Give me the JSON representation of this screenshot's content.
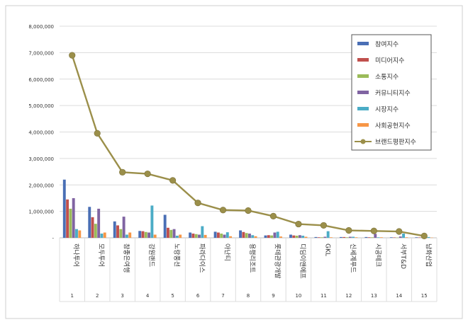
{
  "chart_data": {
    "type": "bar",
    "categories": [
      "하나투어",
      "모두투어",
      "참좋은여행",
      "강원랜드",
      "노랑풍선",
      "파라다이스",
      "아난티",
      "용평리조트",
      "롯데관광개발",
      "디딤이앤에프",
      "GKL",
      "신세계푸드",
      "시공테크",
      "서부T&D",
      "남화산업"
    ],
    "category_numbers": [
      "1",
      "2",
      "3",
      "4",
      "5",
      "6",
      "7",
      "8",
      "9",
      "10",
      "11",
      "12",
      "13",
      "14",
      "15"
    ],
    "yticks": [
      "-",
      "1,000,000",
      "2,000,000",
      "3,000,000",
      "4,000,000",
      "5,000,000",
      "6,000,000",
      "7,000,000",
      "8,000,000"
    ],
    "ylim": [
      0,
      8000000
    ],
    "grid": true,
    "legend_position": "top-right",
    "series": [
      {
        "name": "참여지수",
        "color": "#4a6fb5",
        "values": [
          2200000,
          1170000,
          620000,
          260000,
          870000,
          200000,
          230000,
          280000,
          90000,
          120000,
          30000,
          30000,
          30000,
          20000,
          20000
        ]
      },
      {
        "name": "미디어지수",
        "color": "#c0504d",
        "values": [
          1450000,
          780000,
          470000,
          250000,
          380000,
          160000,
          200000,
          220000,
          100000,
          90000,
          20000,
          30000,
          20000,
          15000,
          15000
        ]
      },
      {
        "name": "소통지수",
        "color": "#9bbb59",
        "values": [
          1100000,
          530000,
          330000,
          220000,
          300000,
          140000,
          160000,
          180000,
          90000,
          80000,
          20000,
          20000,
          20000,
          10000,
          10000
        ]
      },
      {
        "name": "커뮤니티지수",
        "color": "#8064a2",
        "values": [
          1500000,
          1100000,
          800000,
          200000,
          330000,
          120000,
          120000,
          160000,
          200000,
          100000,
          40000,
          40000,
          150000,
          50000,
          10000
        ]
      },
      {
        "name": "시장지수",
        "color": "#4bacc6",
        "values": [
          330000,
          160000,
          120000,
          1220000,
          80000,
          440000,
          210000,
          100000,
          230000,
          80000,
          250000,
          40000,
          20000,
          160000,
          30000
        ]
      },
      {
        "name": "사회공헌지수",
        "color": "#f79646",
        "values": [
          280000,
          200000,
          200000,
          120000,
          120000,
          110000,
          60000,
          60000,
          50000,
          40000,
          20000,
          20000,
          20000,
          20000,
          10000
        ]
      }
    ],
    "line_series": {
      "name": "브랜드평판지수",
      "color": "#9b8f4a",
      "values": [
        6900000,
        3950000,
        2480000,
        2420000,
        2170000,
        1320000,
        1050000,
        1030000,
        820000,
        520000,
        470000,
        280000,
        260000,
        240000,
        70000
      ]
    }
  }
}
